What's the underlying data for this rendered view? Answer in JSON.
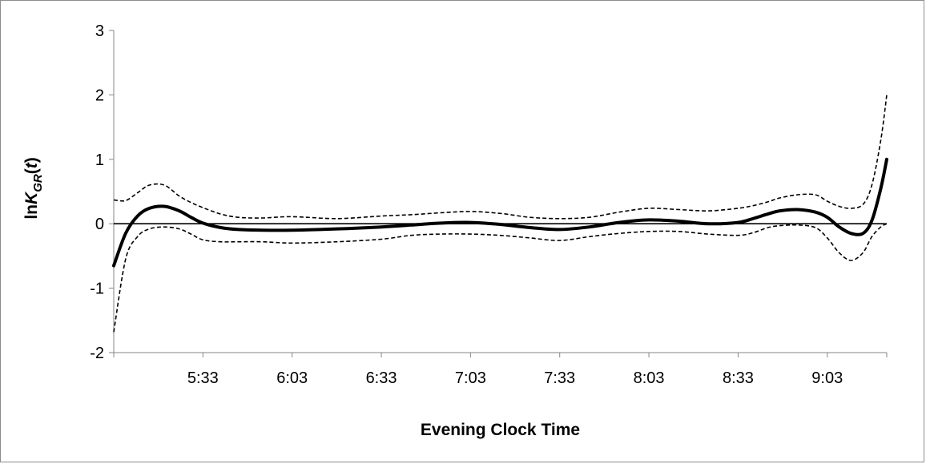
{
  "chart_data": {
    "type": "line",
    "title": "",
    "xlabel": "Evening Clock Time",
    "ylabel": {
      "prefix": "ln",
      "symbol": "K",
      "subscript": "GR",
      "open": "(",
      "variable": "t",
      "close": ")"
    },
    "x_unit": "minutes after 5:03 pm",
    "xlim": [
      0,
      260
    ],
    "ylim": [
      -2,
      3
    ],
    "x_tick_values": [
      30,
      60,
      90,
      120,
      150,
      180,
      210,
      240
    ],
    "x_tick_labels": [
      "5:33",
      "6:03",
      "6:33",
      "7:03",
      "7:33",
      "8:03",
      "8:33",
      "9:03"
    ],
    "y_ticks": [
      -2,
      -1,
      0,
      1,
      2,
      3
    ],
    "y_tick_labels": [
      "-2",
      "-1",
      "0",
      "1",
      "2",
      "3"
    ],
    "reference_line": 0,
    "grid": false,
    "legend": "none",
    "series": [
      {
        "style": "solid-thick",
        "color": "#000000",
        "x": [
          0,
          4,
          8,
          12,
          17,
          22,
          26,
          30,
          36,
          42,
          50,
          60,
          75,
          90,
          100,
          110,
          120,
          130,
          140,
          150,
          160,
          170,
          180,
          190,
          200,
          210,
          215,
          220,
          224,
          230,
          236,
          240,
          244,
          248,
          252,
          255,
          258,
          260
        ],
        "y": [
          -0.65,
          -0.15,
          0.12,
          0.24,
          0.27,
          0.2,
          0.1,
          0.01,
          -0.06,
          -0.09,
          -0.1,
          -0.1,
          -0.08,
          -0.05,
          -0.02,
          0.01,
          0.02,
          -0.01,
          -0.06,
          -0.09,
          -0.05,
          0.02,
          0.06,
          0.04,
          0.0,
          0.02,
          0.08,
          0.15,
          0.2,
          0.22,
          0.18,
          0.1,
          -0.05,
          -0.15,
          -0.15,
          0.05,
          0.55,
          1.0
        ]
      },
      {
        "style": "dashed",
        "color": "#000000",
        "x": [
          0,
          4,
          8,
          12,
          17,
          22,
          26,
          30,
          36,
          42,
          50,
          60,
          75,
          90,
          100,
          110,
          120,
          130,
          140,
          150,
          160,
          170,
          180,
          190,
          200,
          210,
          215,
          220,
          224,
          230,
          236,
          240,
          244,
          248,
          252,
          255,
          258,
          260
        ],
        "y": [
          0.37,
          0.36,
          0.48,
          0.6,
          0.6,
          0.43,
          0.33,
          0.25,
          0.15,
          0.1,
          0.09,
          0.11,
          0.08,
          0.12,
          0.14,
          0.17,
          0.19,
          0.16,
          0.1,
          0.08,
          0.1,
          0.18,
          0.24,
          0.22,
          0.2,
          0.24,
          0.28,
          0.34,
          0.4,
          0.45,
          0.45,
          0.35,
          0.27,
          0.24,
          0.3,
          0.6,
          1.3,
          2.0
        ]
      },
      {
        "style": "dashed",
        "color": "#000000",
        "x": [
          0,
          4,
          8,
          12,
          17,
          22,
          26,
          30,
          36,
          42,
          50,
          60,
          75,
          90,
          100,
          110,
          120,
          130,
          140,
          150,
          160,
          170,
          180,
          190,
          200,
          210,
          215,
          220,
          224,
          230,
          236,
          240,
          244,
          248,
          252,
          255,
          258,
          260
        ],
        "y": [
          -1.68,
          -0.55,
          -0.2,
          -0.08,
          -0.05,
          -0.08,
          -0.16,
          -0.25,
          -0.28,
          -0.28,
          -0.28,
          -0.3,
          -0.28,
          -0.24,
          -0.18,
          -0.16,
          -0.16,
          -0.18,
          -0.22,
          -0.26,
          -0.2,
          -0.15,
          -0.12,
          -0.12,
          -0.16,
          -0.18,
          -0.14,
          -0.06,
          -0.03,
          -0.02,
          -0.06,
          -0.22,
          -0.45,
          -0.57,
          -0.45,
          -0.2,
          -0.05,
          0.0
        ]
      }
    ]
  }
}
